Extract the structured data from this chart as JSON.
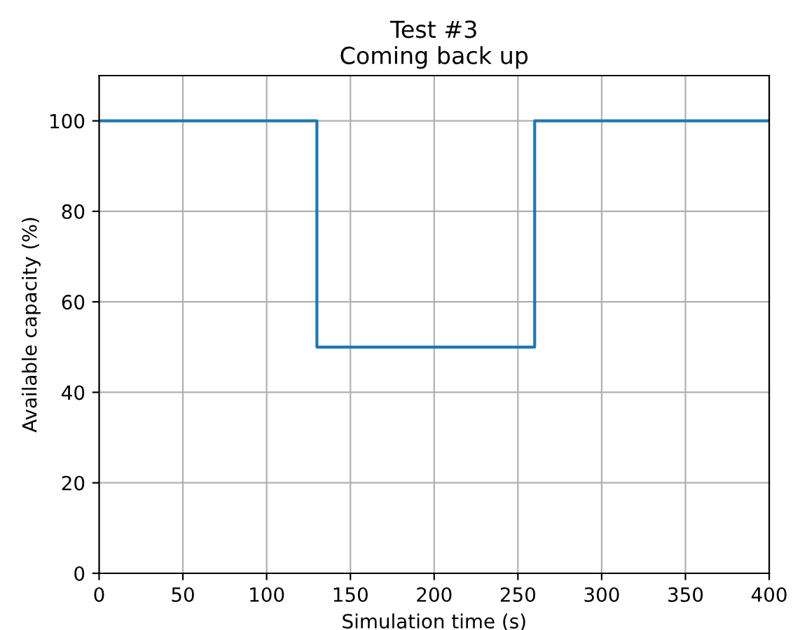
{
  "chart_data": {
    "type": "step",
    "title": "Test #3",
    "subtitle": "Coming back up",
    "xlabel": "Simulation time (s)",
    "ylabel": "Available capacity (%)",
    "x": [
      0,
      130,
      260,
      400
    ],
    "series": [
      {
        "color": "#1f77b4",
        "values": [
          100,
          50,
          100,
          100
        ]
      }
    ],
    "xlim": [
      0,
      400
    ],
    "xticks": [
      0,
      50,
      100,
      150,
      200,
      250,
      300,
      350,
      400
    ],
    "ylim": [
      0,
      110
    ],
    "yticks": [
      0,
      20,
      40,
      60,
      80,
      100
    ],
    "grid": true,
    "legend": false
  }
}
